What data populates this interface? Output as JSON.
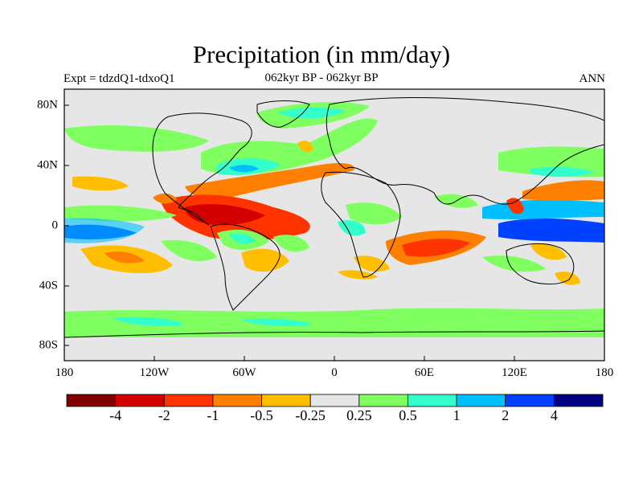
{
  "title": "Precipitation (in mm/day)",
  "subtitle_left": "Expt = tdzdQ1-tdxoQ1",
  "subtitle_center": "062kyr BP - 062kyr BP",
  "subtitle_right": "ANN",
  "lon_ticks": [
    "180",
    "120W",
    "60W",
    "0",
    "60E",
    "120E",
    "180"
  ],
  "lat_ticks": [
    "80N",
    "40N",
    "0",
    "40S",
    "80S"
  ],
  "colorbar": {
    "colors": [
      "#800000",
      "#d40000",
      "#ff3300",
      "#ff7f00",
      "#ffbf00",
      "#e6e6e6",
      "#7fff60",
      "#33ffcc",
      "#00bfff",
      "#0040ff",
      "#000080"
    ],
    "labels": [
      "-4",
      "-2",
      "-1",
      "-0.5",
      "-0.25",
      "0.25",
      "0.5",
      "1",
      "2",
      "4"
    ]
  },
  "map_background_color": "#e6e6e6"
}
